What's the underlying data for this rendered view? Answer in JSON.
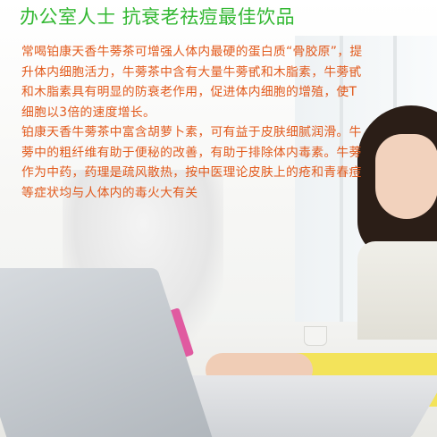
{
  "image": {
    "headline": "办公室人士 抗衰老祛痘最佳饮品",
    "paragraphs": [
      "常喝铂康天香牛蒡茶可增强人体内最硬的蛋白质“骨胶原”，提升体内细胞活力，牛蒡茶中含有大量牛蒡甙和木脂素，牛蒡甙和木脂素具有明显的防衰老作用，促进体内细胞的增殖，使T细胞以3倍的速度增长。",
      "铂康天香牛蒡茶中富含胡萝卜素，可有益于皮肤细腻润滑。牛蒡中的粗纤维有助于便秘的改善，有助于排除体内毒素。牛蒡作为中药，药理是疏风散热，按中医理论皮肤上的疮和青春痘等症状均与人体内的毒火大有关"
    ],
    "colors": {
      "headline": "#33b833",
      "body": "#e25a1c",
      "sleeve": "#f3e35a",
      "phone": "#e05aa0"
    }
  }
}
